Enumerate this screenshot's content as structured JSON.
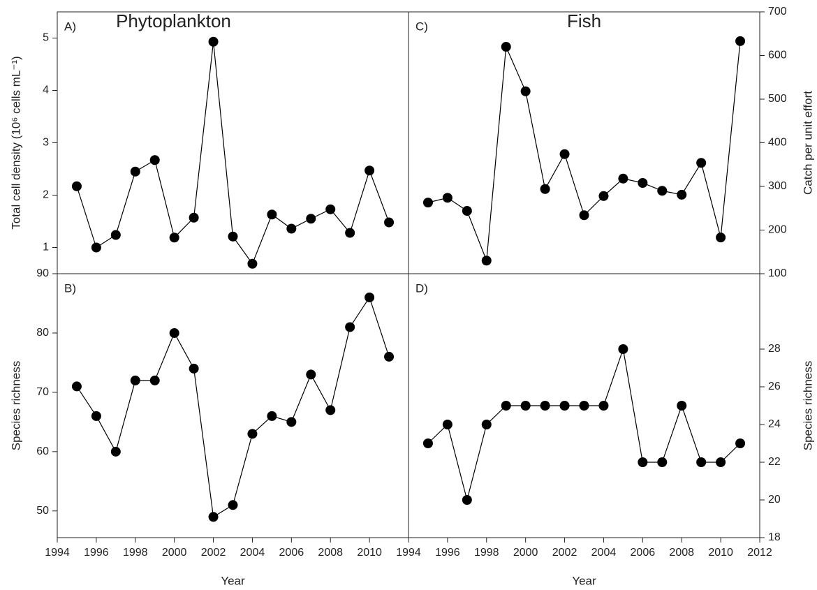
{
  "chart_data": [
    {
      "type": "line",
      "panel_label": "A)",
      "title": "Phytoplankton",
      "ylabel": "Total cell density (10⁶ cells mL⁻¹)",
      "y_axis_side": "left",
      "color": "#000000",
      "x": [
        1995,
        1996,
        1997,
        1998,
        1999,
        2000,
        2001,
        2002,
        2003,
        2004,
        2005,
        2006,
        2007,
        2008,
        2009,
        2010,
        2011
      ],
      "values": [
        2.17,
        1.0,
        1.24,
        2.45,
        2.67,
        1.19,
        1.57,
        4.93,
        1.21,
        0.69,
        1.63,
        1.36,
        1.55,
        1.73,
        1.28,
        2.47,
        1.48
      ],
      "xlim": [
        1994,
        2012
      ],
      "ylim": [
        0.5,
        5.5
      ],
      "yticks": [
        1,
        2,
        3,
        4,
        5
      ]
    },
    {
      "type": "line",
      "panel_label": "B)",
      "ylabel": "Species richness",
      "xlabel": "Year",
      "y_axis_side": "left",
      "color": "#000000",
      "x": [
        1995,
        1996,
        1997,
        1998,
        1999,
        2000,
        2001,
        2002,
        2003,
        2004,
        2005,
        2006,
        2007,
        2008,
        2009,
        2010,
        2011
      ],
      "values": [
        71,
        66,
        60,
        72,
        72,
        80,
        74,
        49,
        51,
        63,
        66,
        65,
        73,
        67,
        81,
        86,
        76
      ],
      "xlim": [
        1994,
        2012
      ],
      "xticks": [
        1994,
        1996,
        1998,
        2000,
        2002,
        2004,
        2006,
        2008,
        2010
      ],
      "ylim": [
        45.5,
        90
      ],
      "yticks": [
        50,
        60,
        70,
        80,
        90
      ]
    },
    {
      "type": "line",
      "panel_label": "C)",
      "title": "Fish",
      "ylabel": "Catch per unit effort",
      "y_axis_side": "right",
      "color": "#000000",
      "x": [
        1995,
        1996,
        1997,
        1998,
        1999,
        2000,
        2001,
        2002,
        2003,
        2004,
        2005,
        2006,
        2007,
        2008,
        2009,
        2010,
        2011
      ],
      "values": [
        263,
        274,
        244,
        130,
        620,
        518,
        294,
        374,
        234,
        278,
        318,
        308,
        290,
        281,
        354,
        183,
        633
      ],
      "xlim": [
        1994,
        2012
      ],
      "ylim": [
        100,
        700
      ],
      "yticks": [
        100,
        200,
        300,
        400,
        500,
        600,
        700
      ]
    },
    {
      "type": "line",
      "panel_label": "D)",
      "ylabel": "Species richness",
      "xlabel": "Year",
      "y_axis_side": "right",
      "color": "#000000",
      "x": [
        1995,
        1996,
        1997,
        1998,
        1999,
        2000,
        2001,
        2002,
        2003,
        2004,
        2005,
        2006,
        2007,
        2008,
        2009,
        2010,
        2011
      ],
      "values": [
        23,
        24,
        20,
        24,
        25,
        25,
        25,
        25,
        25,
        25,
        28,
        22,
        22,
        25,
        22,
        22,
        23
      ],
      "xlim": [
        1994,
        2012
      ],
      "xticks": [
        1994,
        1996,
        1998,
        2000,
        2002,
        2004,
        2006,
        2008,
        2010,
        2012
      ],
      "ylim": [
        18,
        32
      ],
      "yticks": [
        18,
        20,
        22,
        24,
        26,
        28
      ]
    }
  ]
}
